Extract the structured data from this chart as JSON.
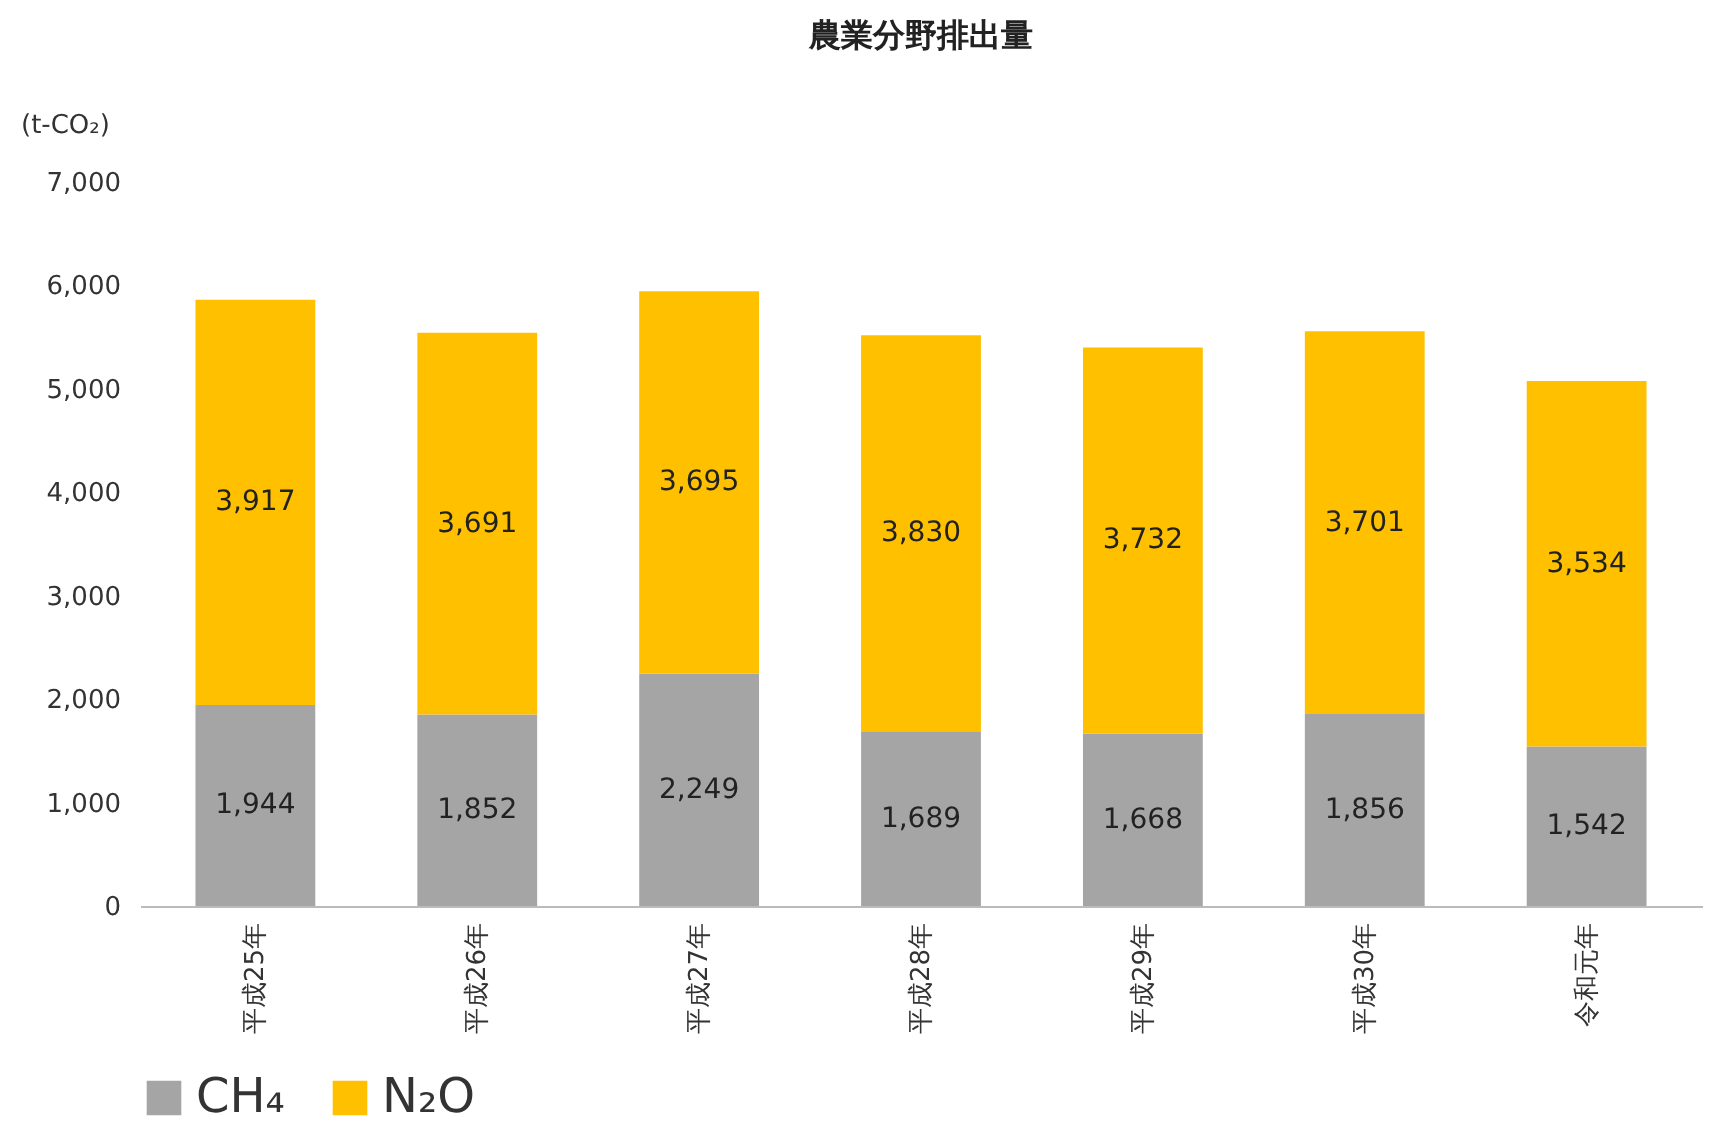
{
  "chart_data": {
    "type": "bar",
    "title": "農業分野排出量",
    "ylabel": "(t-CO₂)",
    "stacked": true,
    "categories": [
      "平成25年",
      "平成26年",
      "平成27年",
      "平成28年",
      "平成29年",
      "平成30年",
      "令和元年"
    ],
    "series": [
      {
        "name": "CH₄",
        "color": "#a5a5a5",
        "values": [
          1944,
          1852,
          2249,
          1689,
          1668,
          1856,
          1542
        ],
        "value_labels": [
          "1,944",
          "1,852",
          "2,249",
          "1,689",
          "1,668",
          "1,856",
          "1,542"
        ]
      },
      {
        "name": "N₂O",
        "color": "#ffc000",
        "values": [
          3917,
          3691,
          3695,
          3830,
          3732,
          3701,
          3534
        ],
        "value_labels": [
          "3,917",
          "3,691",
          "3,695",
          "3,830",
          "3,732",
          "3,701",
          "3,534"
        ]
      }
    ],
    "ylim": [
      0,
      7000
    ],
    "yticks": [
      {
        "value": 0,
        "label": "0"
      },
      {
        "value": 1000,
        "label": "1,000"
      },
      {
        "value": 2000,
        "label": "2,000"
      },
      {
        "value": 3000,
        "label": "3,000"
      },
      {
        "value": 4000,
        "label": "4,000"
      },
      {
        "value": 5000,
        "label": "5,000"
      },
      {
        "value": 6000,
        "label": "6,000"
      },
      {
        "value": 7000,
        "label": "7,000"
      }
    ],
    "grid": false,
    "legend": "bottom"
  }
}
